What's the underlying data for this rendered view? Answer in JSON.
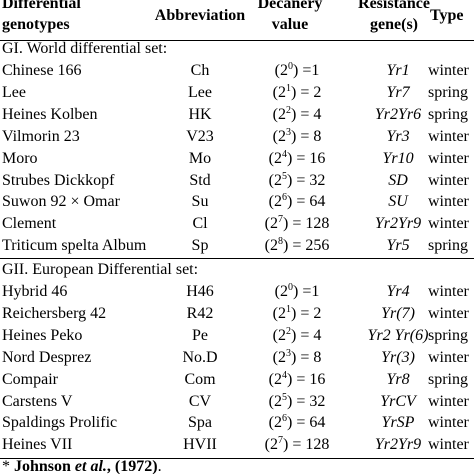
{
  "header": {
    "genotypes": [
      "Differential",
      "genotypes"
    ],
    "abbreviation": [
      "Abbreviation"
    ],
    "decanery": [
      "Decanery",
      "value"
    ],
    "resistance": [
      "Resistance",
      "gene(s)"
    ],
    "type": [
      "Type"
    ]
  },
  "groups": [
    {
      "title": "GI. World differential set:",
      "rows": [
        {
          "genotype": "Chinese 166",
          "abbr": "Ch",
          "pre": "(2",
          "exp": "0",
          "post": ") =1",
          "gene": "Yr1",
          "type": "winter"
        },
        {
          "genotype": "Lee",
          "abbr": "Lee",
          "pre": "(2",
          "exp": "1",
          "post": ") = 2",
          "gene": "Yr7",
          "type": "spring"
        },
        {
          "genotype": "Heines Kolben",
          "abbr": "HK",
          "pre": "(2",
          "exp": "2",
          "post": ") = 4",
          "gene": "Yr2Yr6",
          "type": "spring"
        },
        {
          "genotype": "Vilmorin 23",
          "abbr": "V23",
          "pre": "(2",
          "exp": "3",
          "post": ") = 8",
          "gene": "Yr3",
          "type": "winter"
        },
        {
          "genotype": "Moro",
          "abbr": "Mo",
          "pre": "(2",
          "exp": "4",
          "post": ") = 16",
          "gene": "Yr10",
          "type": "winter"
        },
        {
          "genotype": "Strubes Dickkopf",
          "abbr": "Std",
          "pre": "(2",
          "exp": "5",
          "post": ") = 32",
          "gene": "SD",
          "type": "winter"
        },
        {
          "genotype": "Suwon  92 × Omar",
          "abbr": "Su",
          "pre": "(2",
          "exp": "6",
          "post": ") = 64",
          "gene": "SU",
          "type": "winter"
        },
        {
          "genotype": "Clement",
          "abbr": "Cl",
          "pre": "(2",
          "exp": "7",
          "post": ") = 128",
          "gene": "Yr2Yr9",
          "type": "winter"
        },
        {
          "genotype": "Triticum spelta Album",
          "abbr": "Sp",
          "pre": "(2",
          "exp": "8",
          "post": ") = 256",
          "gene": "Yr5",
          "type": "spring"
        }
      ]
    },
    {
      "title": "GII. European Differential set:",
      "rows": [
        {
          "genotype": "Hybrid 46",
          "abbr": "H46",
          "pre": "(2",
          "exp": "0",
          "post": ") =1",
          "gene": "Yr4",
          "type": "winter"
        },
        {
          "genotype": "Reichersberg 42",
          "abbr": "R42",
          "pre": "(2",
          "exp": "1",
          "post": ") = 2",
          "gene": "Yr(7)",
          "type": "winter"
        },
        {
          "genotype": "Heines Peko",
          "abbr": "Pe",
          "pre": "(2",
          "exp": "2",
          "post": ") = 4",
          "gene": "Yr2 Yr(6)",
          "type": "spring"
        },
        {
          "genotype": "Nord Desprez",
          "abbr": "No.D",
          "pre": "(2",
          "exp": "3",
          "post": ") = 8",
          "gene": "Yr(3)",
          "type": "winter"
        },
        {
          "genotype": "Compair",
          "abbr": "Com",
          "pre": "(2",
          "exp": "4",
          "post": ") = 16",
          "gene": "Yr8",
          "type": "spring"
        },
        {
          "genotype": "Carstens V",
          "abbr": "CV",
          "pre": "(2",
          "exp": "5",
          "post": ") = 32",
          "gene": "YrCV",
          "type": "winter"
        },
        {
          "genotype": "Spaldings Prolific",
          "abbr": "Spa",
          "pre": "(2",
          "exp": "6",
          "post": ") = 64",
          "gene": "YrSP",
          "type": "winter"
        },
        {
          "genotype": "Heines VII",
          "abbr": "HVII",
          "pre": "(2",
          "exp": "7",
          "post": ") = 128",
          "gene": "Yr2Yr9",
          "type": "winter"
        }
      ]
    }
  ],
  "footnote": {
    "mark": "*",
    "author": "Johnson",
    "etal": "et al.",
    "rest": ", (1972)",
    "end": "."
  }
}
